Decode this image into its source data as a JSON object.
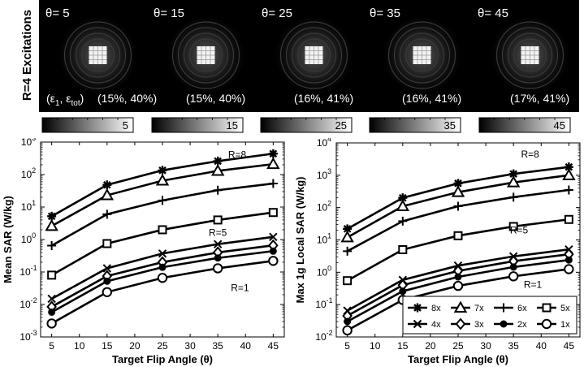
{
  "excitations": {
    "row_label": "R=4 Excitations",
    "epsilon_label_prefix": "(ε",
    "epsilon_label_sub1": "1",
    "epsilon_label_mid": ", ε",
    "epsilon_label_sub2": "tot",
    "epsilon_label_suffix": ")",
    "panels": [
      {
        "theta_label": "θ= 5",
        "errors": "(15%, 40%)"
      },
      {
        "theta_label": "θ= 15",
        "errors": "(15%, 40%)"
      },
      {
        "theta_label": "θ= 25",
        "errors": "(16%, 41%)"
      },
      {
        "theta_label": "θ= 35",
        "errors": "(16%, 41%)"
      },
      {
        "theta_label": "θ= 45",
        "errors": "(17%, 41%)"
      }
    ],
    "colorbar_max_labels": [
      "5",
      "15",
      "25",
      "35",
      "45"
    ]
  },
  "chart_data": [
    {
      "type": "line",
      "title": "",
      "xlabel": "Target Flip Angle (θ)",
      "ylabel": "Mean SAR (W/kg)",
      "x": [
        5,
        15,
        25,
        35,
        45
      ],
      "xlim": [
        3,
        47
      ],
      "xticks": [
        5,
        10,
        15,
        20,
        25,
        30,
        35,
        40,
        45
      ],
      "yscale": "log",
      "ylim": [
        0.001,
        1000
      ],
      "yticks_exp": [
        -3,
        -2,
        -1,
        0,
        1,
        2,
        3
      ],
      "ytick_base": "10",
      "grid": false,
      "legend": "none",
      "annotations": [
        {
          "text": "R=8",
          "x": 38.5,
          "y": 330
        },
        {
          "text": "R=5",
          "x": 35,
          "y": 1.3
        },
        {
          "text": "R=1",
          "x": 39,
          "y": 0.026
        }
      ],
      "series": [
        {
          "name": "8x",
          "marker": "asterisk",
          "values": [
            5.2,
            48,
            135,
            260,
            440
          ]
        },
        {
          "name": "7x",
          "marker": "triangle",
          "values": [
            2.6,
            23,
            65,
            130,
            210
          ]
        },
        {
          "name": "6x",
          "marker": "plus",
          "values": [
            0.65,
            6.0,
            16,
            33,
            53
          ]
        },
        {
          "name": "5x",
          "marker": "square",
          "values": [
            0.08,
            0.75,
            2.0,
            4.0,
            6.8
          ]
        },
        {
          "name": "4x",
          "marker": "cross",
          "values": [
            0.015,
            0.13,
            0.37,
            0.72,
            1.2
          ]
        },
        {
          "name": "3x",
          "marker": "diamond",
          "values": [
            0.0085,
            0.075,
            0.2,
            0.4,
            0.66
          ]
        },
        {
          "name": "2x",
          "marker": "dot",
          "values": [
            0.0058,
            0.052,
            0.14,
            0.27,
            0.44
          ]
        },
        {
          "name": "1x",
          "marker": "circle",
          "values": [
            0.0026,
            0.024,
            0.066,
            0.13,
            0.22
          ]
        }
      ]
    },
    {
      "type": "line",
      "title": "",
      "xlabel": "Target Flip Angle (θ)",
      "ylabel": "Max 1g Local SAR (W/kg)",
      "x": [
        5,
        15,
        25,
        35,
        45
      ],
      "xlim": [
        3,
        47
      ],
      "xticks": [
        5,
        10,
        15,
        20,
        25,
        30,
        35,
        40,
        45
      ],
      "yscale": "log",
      "ylim": [
        0.01,
        10000
      ],
      "yticks_exp": [
        -2,
        -1,
        0,
        1,
        2,
        3,
        4
      ],
      "ytick_base": "10",
      "grid": false,
      "legend": "bottom-right",
      "legend_columns": 4,
      "annotations": [
        {
          "text": "R=8",
          "x": 38,
          "y": 3500
        },
        {
          "text": "R=5",
          "x": 36,
          "y": 16
        },
        {
          "text": "R=1",
          "x": 38.5,
          "y": 0.33
        }
      ],
      "series": [
        {
          "name": "8x",
          "marker": "asterisk",
          "values": [
            22,
            200,
            560,
            1100,
            1800
          ]
        },
        {
          "name": "7x",
          "marker": "triangle",
          "values": [
            12,
            110,
            300,
            600,
            1000
          ]
        },
        {
          "name": "6x",
          "marker": "plus",
          "values": [
            4.5,
            38,
            110,
            210,
            350
          ]
        },
        {
          "name": "5x",
          "marker": "square",
          "values": [
            0.55,
            5.0,
            13.5,
            26,
            43
          ]
        },
        {
          "name": "4x",
          "marker": "cross",
          "values": [
            0.065,
            0.58,
            1.6,
            3.1,
            5.1
          ]
        },
        {
          "name": "3x",
          "marker": "diamond",
          "values": [
            0.045,
            0.4,
            1.1,
            2.2,
            3.6
          ]
        },
        {
          "name": "2x",
          "marker": "dot",
          "values": [
            0.03,
            0.26,
            0.72,
            1.45,
            2.4
          ]
        },
        {
          "name": "1x",
          "marker": "circle",
          "values": [
            0.016,
            0.14,
            0.38,
            0.75,
            1.25
          ]
        }
      ]
    }
  ]
}
